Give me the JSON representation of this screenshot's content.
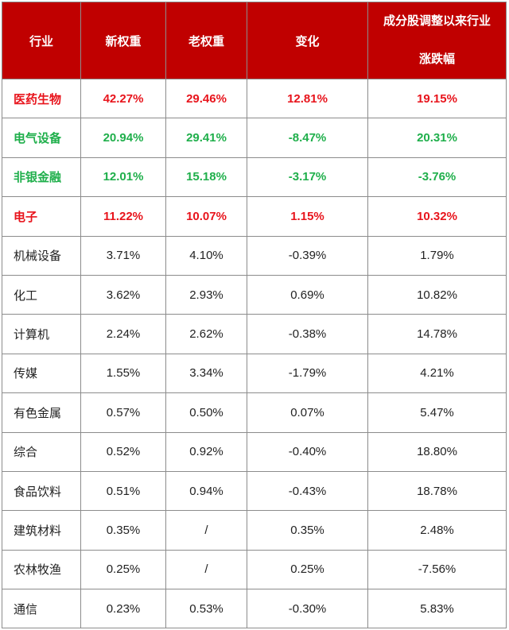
{
  "headers": [
    "行业",
    "新权重",
    "老权重",
    "变化",
    "成分股调整以来行业",
    "涨跌幅"
  ],
  "colors": {
    "header_bg": "#c00000",
    "highlight_red": "#e8141c",
    "highlight_green": "#1faf4b"
  },
  "rows": [
    {
      "industry": "医药生物",
      "new": "42.27%",
      "old": "29.46%",
      "change": "12.81%",
      "since": "19.15%",
      "highlight": "red"
    },
    {
      "industry": "电气设备",
      "new": "20.94%",
      "old": "29.41%",
      "change": "-8.47%",
      "since": "20.31%",
      "highlight": "green"
    },
    {
      "industry": "非银金融",
      "new": "12.01%",
      "old": "15.18%",
      "change": "-3.17%",
      "since": "-3.76%",
      "highlight": "green"
    },
    {
      "industry": "电子",
      "new": "11.22%",
      "old": "10.07%",
      "change": "1.15%",
      "since": "10.32%",
      "highlight": "red"
    },
    {
      "industry": "机械设备",
      "new": "3.71%",
      "old": "4.10%",
      "change": "-0.39%",
      "since": "1.79%",
      "highlight": ""
    },
    {
      "industry": "化工",
      "new": "3.62%",
      "old": "2.93%",
      "change": "0.69%",
      "since": "10.82%",
      "highlight": ""
    },
    {
      "industry": "计算机",
      "new": "2.24%",
      "old": "2.62%",
      "change": "-0.38%",
      "since": "14.78%",
      "highlight": ""
    },
    {
      "industry": "传媒",
      "new": "1.55%",
      "old": "3.34%",
      "change": "-1.79%",
      "since": "4.21%",
      "highlight": ""
    },
    {
      "industry": "有色金属",
      "new": "0.57%",
      "old": "0.50%",
      "change": "0.07%",
      "since": "5.47%",
      "highlight": ""
    },
    {
      "industry": "综合",
      "new": "0.52%",
      "old": "0.92%",
      "change": "-0.40%",
      "since": "18.80%",
      "highlight": ""
    },
    {
      "industry": "食品饮料",
      "new": "0.51%",
      "old": "0.94%",
      "change": "-0.43%",
      "since": "18.78%",
      "highlight": ""
    },
    {
      "industry": "建筑材料",
      "new": "0.35%",
      "old": "/",
      "change": "0.35%",
      "since": "2.48%",
      "highlight": ""
    },
    {
      "industry": "农林牧渔",
      "new": "0.25%",
      "old": "/",
      "change": "0.25%",
      "since": "-7.56%",
      "highlight": ""
    },
    {
      "industry": "通信",
      "new": "0.23%",
      "old": "0.53%",
      "change": "-0.30%",
      "since": "5.83%",
      "highlight": ""
    }
  ]
}
